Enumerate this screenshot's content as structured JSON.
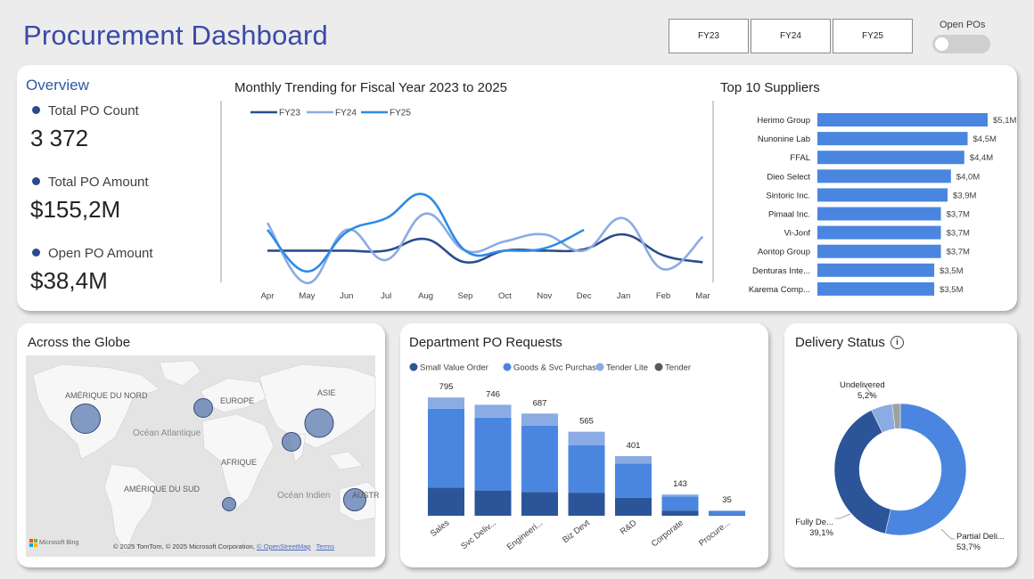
{
  "header": {
    "title": "Procurement Dashboard",
    "fy_buttons": [
      "FY23",
      "FY24",
      "FY25"
    ],
    "toggle_label": "Open POs",
    "toggle_on": false
  },
  "overview": {
    "title": "Overview",
    "kpis": [
      {
        "label": "Total PO Count",
        "value": "3 372"
      },
      {
        "label": "Total PO Amount",
        "value": "$155,2M"
      },
      {
        "label": "Open PO Amount",
        "value": "$38,4M"
      }
    ]
  },
  "trend": {
    "title": "Monthly Trending for Fiscal Year 2023 to 2025",
    "months": [
      "Apr",
      "May",
      "Jun",
      "Jul",
      "Aug",
      "Sep",
      "Oct",
      "Nov",
      "Dec",
      "Jan",
      "Feb",
      "Mar"
    ]
  },
  "suppliers": {
    "title": "Top 10 Suppliers"
  },
  "globe": {
    "title": "Across the Globe",
    "labels": {
      "na": "AMÉRIQUE DU NORD",
      "eu": "EUROPE",
      "asia": "ASIE",
      "atlantic": "Océan Atlantique",
      "africa": "AFRIQUE",
      "sa": "AMÉRIQUE DU SUD",
      "indian": "Océan Indien",
      "aus": "AUSTR"
    },
    "brand": "Microsoft Bing",
    "copyright": "© 2025 TomTom, © 2025 Microsoft Corporation,",
    "osm_link": "© OpenStreetMap",
    "terms_link": "Terms"
  },
  "department": {
    "title": "Department PO Requests"
  },
  "delivery": {
    "title": "Delivery Status",
    "info_icon": "info-icon"
  },
  "colors": {
    "title": "#3a4aa8",
    "dark": "#2b5598",
    "mid": "#4a86e0",
    "light": "#8aabe3",
    "tender": "#5a5a5a",
    "gray": "#a0a0a0"
  },
  "chart_data": [
    {
      "type": "line",
      "title": "Monthly Trending for Fiscal Year 2023 to 2025",
      "x": [
        "Apr",
        "May",
        "Jun",
        "Jul",
        "Aug",
        "Sep",
        "Oct",
        "Nov",
        "Dec",
        "Jan",
        "Feb",
        "Mar"
      ],
      "legend_position": "top-left",
      "series": [
        {
          "name": "FY23",
          "color": "#2b4c8c",
          "values": [
            280,
            280,
            280,
            280,
            305,
            255,
            280,
            280,
            283,
            315,
            270,
            255
          ]
        },
        {
          "name": "FY24",
          "color": "#8aabe3",
          "values": [
            340,
            210,
            325,
            260,
            360,
            280,
            300,
            315,
            280,
            350,
            240,
            310
          ]
        },
        {
          "name": "FY25",
          "color": "#2e8ae6",
          "values": [
            325,
            235,
            320,
            350,
            400,
            280,
            280,
            285,
            325,
            null,
            null,
            null
          ]
        }
      ]
    },
    {
      "type": "bar",
      "orientation": "horizontal",
      "title": "Top 10 Suppliers",
      "categories": [
        "Herimo Group",
        "Nunonine Lab",
        "FFAL",
        "Dieo Select",
        "Sintoric Inc.",
        "Pimaal Inc.",
        "Vi-Jonf",
        "Aontop Group",
        "Denturas Inte...",
        "Karema Comp..."
      ],
      "values": [
        5.1,
        4.5,
        4.4,
        4.0,
        3.9,
        3.7,
        3.7,
        3.7,
        3.5,
        3.5
      ],
      "labels": [
        "$5,1M",
        "$4,5M",
        "$4,4M",
        "$4,0M",
        "$3,9M",
        "$3,7M",
        "$3,7M",
        "$3,7M",
        "$3,5M",
        "$3,5M"
      ],
      "color": "#4a86e0"
    },
    {
      "type": "bar",
      "stacked": true,
      "title": "Department PO Requests",
      "categories": [
        "Sales",
        "Svc Deliv...",
        "Engineeri...",
        "Biz Devt",
        "R&D",
        "Corporate",
        "Procure..."
      ],
      "totals": [
        795,
        746,
        687,
        565,
        401,
        143,
        35
      ],
      "legend_position": "top",
      "series": [
        {
          "name": "Small Value Order",
          "color": "#2b5598",
          "values": [
            190,
            170,
            160,
            155,
            120,
            35,
            5
          ]
        },
        {
          "name": "Goods & Svc Purchase",
          "color": "#4a86e0",
          "values": [
            530,
            490,
            445,
            320,
            230,
            95,
            25
          ]
        },
        {
          "name": "Tender Lite",
          "color": "#8aabe3",
          "values": [
            75,
            86,
            82,
            90,
            51,
            13,
            5
          ]
        },
        {
          "name": "Tender",
          "color": "#5a5a5a",
          "values": [
            0,
            0,
            0,
            0,
            0,
            0,
            0
          ]
        }
      ]
    },
    {
      "type": "pie",
      "donut": true,
      "title": "Delivery Status",
      "slices": [
        {
          "name": "Partial Deli...",
          "value": 53.7,
          "label": "53,7%",
          "color": "#4a86e0"
        },
        {
          "name": "Fully De...",
          "value": 39.1,
          "label": "39,1%",
          "color": "#2b5598"
        },
        {
          "name": "Undelivered",
          "value": 5.2,
          "label": "5,2%",
          "color": "#8aabe3"
        },
        {
          "name": "",
          "value": 2.0,
          "label": "",
          "color": "#a0a0a0"
        }
      ]
    }
  ]
}
